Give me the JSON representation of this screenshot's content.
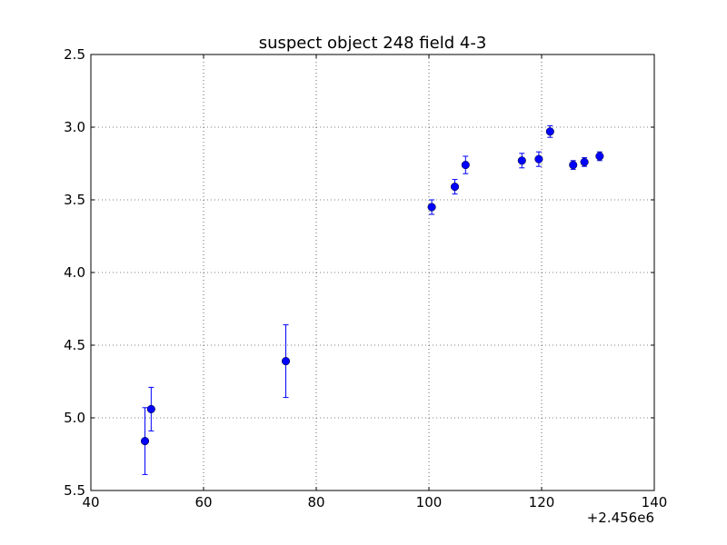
{
  "chart_data": {
    "type": "scatter",
    "title": "suspect object 248 field 4-3",
    "xlabel": "",
    "ylabel": "",
    "xlim": [
      40,
      140
    ],
    "ylim": [
      5.5,
      2.5
    ],
    "y_inverted": true,
    "x_offset_label": "+2.456e6",
    "x_ticks": [
      40,
      60,
      80,
      100,
      120,
      140
    ],
    "x_tick_labels": [
      "40",
      "60",
      "80",
      "100",
      "120",
      "140"
    ],
    "y_ticks": [
      2.5,
      3.0,
      3.5,
      4.0,
      4.5,
      5.0,
      5.5
    ],
    "y_tick_labels": [
      "2.5",
      "3.0",
      "3.5",
      "4.0",
      "4.5",
      "5.0",
      "5.5"
    ],
    "grid": true,
    "marker_color": "#0000ff",
    "series": [
      {
        "x": [
          49.6,
          50.7,
          74.6,
          100.5,
          104.6,
          106.5,
          116.5,
          119.5,
          121.5,
          125.6,
          127.6,
          130.3
        ],
        "y": [
          5.16,
          4.94,
          4.61,
          3.55,
          3.41,
          3.26,
          3.23,
          3.22,
          3.03,
          3.26,
          3.24,
          3.2
        ],
        "yerr": [
          0.23,
          0.15,
          0.25,
          0.05,
          0.05,
          0.06,
          0.05,
          0.05,
          0.04,
          0.03,
          0.03,
          0.03
        ]
      }
    ]
  }
}
